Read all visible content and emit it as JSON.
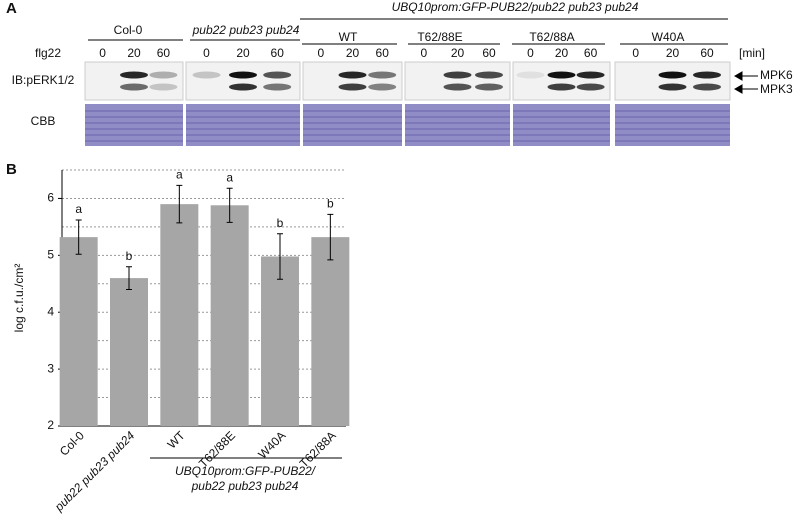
{
  "panel_a": {
    "label": "A",
    "groups": [
      "Col-0",
      "pub22 pub23 pub24"
    ],
    "construct": "UBQ10prom:GFP-PUB22/pub22 pub23 pub24",
    "variants": [
      "WT",
      "T62/88E",
      "T62/88A",
      "W40A"
    ],
    "treatment": "flg22",
    "times": [
      [
        "0",
        "20",
        "60"
      ],
      [
        "0",
        "20",
        "60"
      ],
      [
        "0",
        "20",
        "60"
      ],
      [
        "0",
        "20",
        "60"
      ],
      [
        "0",
        "20",
        "60"
      ],
      [
        "0",
        "20",
        "60"
      ]
    ],
    "unit": "[min]",
    "blot_label": "IB:pERK1/2",
    "stain_label": "CBB",
    "bands": [
      "MPK6",
      "MPK3"
    ]
  },
  "chart_data": {
    "type": "bar",
    "label": "B",
    "categories": [
      "Col-0",
      "pub22 pub23 pub24",
      "WT",
      "T62/88E",
      "W40A",
      "T62/88A"
    ],
    "values": [
      5.32,
      4.6,
      5.9,
      5.88,
      4.98,
      5.32
    ],
    "errors": [
      0.3,
      0.2,
      0.33,
      0.3,
      0.4,
      0.4
    ],
    "letters": [
      "a",
      "b",
      "a",
      "a",
      "b",
      "b"
    ],
    "color": "#a6a6a6",
    "y_label": "log c.f.u./cm²",
    "ylim": [
      2,
      6.5
    ],
    "yticks": [
      2,
      3,
      4,
      5,
      6
    ],
    "grid_lines": [
      2.5,
      3,
      3.5,
      4,
      4.5,
      5,
      5.5,
      6,
      6.5
    ],
    "group_label": [
      "UBQ10prom:GFP-PUB22/",
      "pub22 pub23 pub24"
    ]
  }
}
